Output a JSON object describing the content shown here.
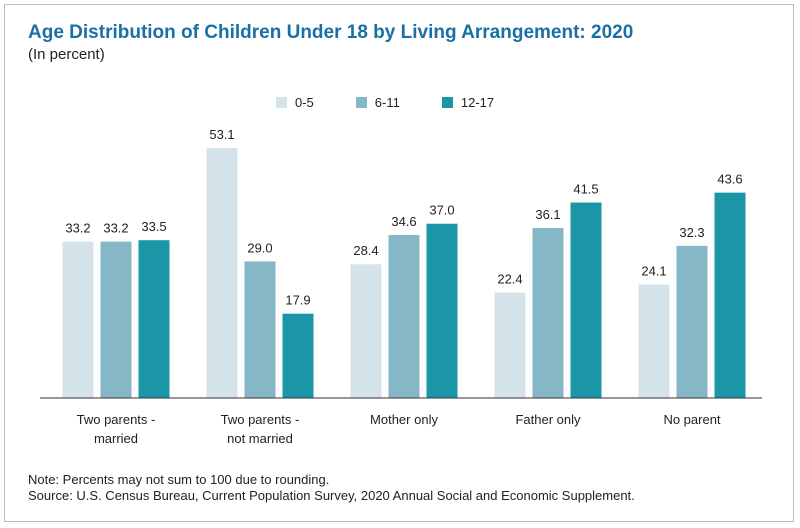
{
  "title": "Age Distribution of Children Under 18 by Living Arrangement: 2020",
  "subtitle": "(In percent)",
  "note": "Note: Percents may not sum to 100 due to rounding.",
  "source": "Source: U.S. Census Bureau, Current Population Survey, 2020 Annual Social and Economic Supplement.",
  "chart_data": {
    "type": "bar",
    "title": "Age Distribution of Children Under 18 by Living Arrangement: 2020",
    "subtitle": "(In percent)",
    "xlabel": "",
    "ylabel": "",
    "ylim": [
      0,
      60
    ],
    "grid": false,
    "legend_position": "top-center",
    "categories": [
      [
        "Two parents -",
        "married"
      ],
      [
        "Two parents -",
        "not married"
      ],
      [
        "Mother only"
      ],
      [
        "Father only"
      ],
      [
        "No parent"
      ]
    ],
    "series": [
      {
        "name": "0-5",
        "color": "#d4e3ea",
        "values": [
          33.2,
          53.1,
          28.4,
          22.4,
          24.1
        ]
      },
      {
        "name": "6-11",
        "color": "#86b7c6",
        "values": [
          33.2,
          29.0,
          34.6,
          36.1,
          32.3
        ]
      },
      {
        "name": "12-17",
        "color": "#1a96a6",
        "values": [
          33.5,
          17.9,
          37.0,
          41.5,
          43.6
        ]
      }
    ]
  }
}
